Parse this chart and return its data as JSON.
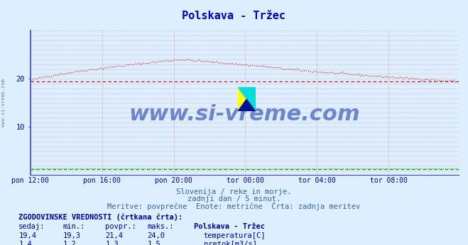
{
  "title": "Polskava - Tržec",
  "title_color": "#0000cc",
  "bg_color": "#ddeeff",
  "plot_bg_color": "#ddeeff",
  "grid_color_v": "#cc8888",
  "grid_color_h": "#cc8888",
  "spine_color": "#4444cc",
  "x_tick_labels": [
    "pon 12:00",
    "pon 16:00",
    "pon 20:00",
    "tor 00:00",
    "tor 04:00",
    "tor 08:00"
  ],
  "x_tick_positions": [
    0,
    48,
    96,
    144,
    192,
    240
  ],
  "n_points": 288,
  "temp_color": "#cc0000",
  "temp_avg": 19.5,
  "flow_color": "#00aa00",
  "flow_avg": 1.3,
  "ylim": [
    0,
    30
  ],
  "ytick_positions": [
    10,
    20
  ],
  "ytick_labels": [
    "10",
    "20"
  ],
  "subtitle1": "Slovenija / reke in morje.",
  "subtitle2": "zadnji dan / 5 minut.",
  "subtitle3": "Meritve: povprečne  Enote: metrične  Črta: zadnja meritev",
  "subtitle_color": "#3366aa",
  "table_title": "ZGODOVINSKE VREDNOSTI (črtkana črta):",
  "table_color": "#0000aa",
  "col_headers": [
    "sedaj:",
    "min.:",
    "povpr.:",
    "maks.:",
    "Polskava - Tržec"
  ],
  "row1": [
    "19,4",
    "19,3",
    "21,4",
    "24,0",
    "temperatura[C]"
  ],
  "row2": [
    "1,4",
    "1,2",
    "1,3",
    "1,5",
    "pretok[m3/s]"
  ],
  "watermark": "www.si-vreme.com",
  "watermark_color": "#1133aa",
  "left_label": "www.si-vreme.com",
  "legend_rect_temp": "#cc0000",
  "legend_rect_flow": "#00aa00"
}
